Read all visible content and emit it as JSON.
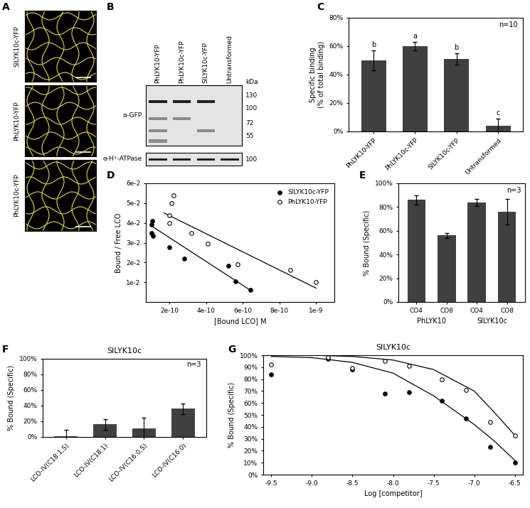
{
  "panel_a": {
    "panel": "A",
    "images": [
      {
        "label": "SlLYK10c-YFP"
      },
      {
        "label": "PhLYK10-YFP"
      },
      {
        "label": "PhLYK10c-YFP"
      }
    ]
  },
  "panel_b": {
    "panel": "B",
    "lanes": [
      "PhLYK10-YFP",
      "PhLYK10c-YFP",
      "SlLYK10c-YFP",
      "Untransformed"
    ],
    "unit": "kDa",
    "blots": [
      {
        "antibody": "α-GFP",
        "markers": [
          130,
          100,
          72,
          55
        ]
      },
      {
        "antibody": "α-H⁺-ATPase",
        "markers": [
          100
        ]
      }
    ]
  },
  "chart_data": [
    {
      "panel": "C",
      "type": "bar",
      "categories": [
        "PhLYK10-YFP",
        "PhLYK10c-YFP",
        "SlLYK10c-YFP",
        "Untransformed"
      ],
      "values": [
        50,
        60,
        51,
        4
      ],
      "errors": [
        7,
        3,
        4,
        5
      ],
      "significance": [
        "b",
        "a",
        "b",
        "c"
      ],
      "annotation": "n=10",
      "y_label": "Specific binding\n(% of total binding)",
      "color": "#404040",
      "ylim": [
        0,
        80
      ],
      "yticks": [
        {
          "value": 0,
          "label": "0%"
        },
        {
          "value": 20,
          "label": "20%"
        },
        {
          "value": 40,
          "label": "40%"
        },
        {
          "value": 60,
          "label": "60%"
        },
        {
          "value": 80,
          "label": "80%"
        }
      ]
    },
    {
      "panel": "D",
      "type": "scatter",
      "x_label": "[Bound LCO] M",
      "y_label": "Bound / Free LCO",
      "xlim": [
        7e-11,
        1.1e-09
      ],
      "xticks": [
        {
          "value": 2e-10,
          "label": "2e-10"
        },
        {
          "value": 4e-10,
          "label": "4e-10"
        },
        {
          "value": 6e-10,
          "label": "6e-10"
        },
        {
          "value": 8e-10,
          "label": "8e-10"
        },
        {
          "value": 1e-09,
          "label": "1e-9"
        }
      ],
      "ylim": [
        0,
        0.06
      ],
      "yticks": [
        {
          "value": 0.01,
          "label": "1e-2"
        },
        {
          "value": 0.02,
          "label": "2e-2"
        },
        {
          "value": 0.03,
          "label": "3e-2"
        },
        {
          "value": 0.04,
          "label": "4e-2"
        },
        {
          "value": 0.05,
          "label": "5e-2"
        },
        {
          "value": 0.06,
          "label": "6e-2"
        }
      ],
      "legend": "upper right",
      "series": [
        {
          "name": "SlLYK10c-YFP",
          "color": "#000000",
          "marker": "filled",
          "x": [
            1e-10,
            1.05e-10,
            1e-10,
            1.1e-10,
            2e-10,
            2.8e-10,
            5.2e-10,
            5.6e-10,
            6.4e-10
          ],
          "values": [
            0.039,
            0.041,
            0.035,
            0.0335,
            0.0275,
            0.022,
            0.0185,
            0.0105,
            0.006
          ]
        },
        {
          "name": "PhLYK10-YFP",
          "color": "#000000",
          "marker": "open",
          "x": [
            2e-10,
            2.2e-10,
            2.1e-10,
            2e-10,
            3.2e-10,
            4.1e-10,
            5.7e-10,
            8.6e-10,
            1e-09
          ],
          "values": [
            0.044,
            0.054,
            0.05,
            0.04,
            0.035,
            0.0295,
            0.019,
            0.016,
            0.01
          ]
        },
        {
          "type": "line",
          "color": "#000000",
          "x": [
            1e-10,
            6.4e-10
          ],
          "values": [
            0.0385,
            0.006
          ]
        },
        {
          "type": "line",
          "color": "#000000",
          "x": [
            1.7e-10,
            1e-09
          ],
          "values": [
            0.045,
            0.007
          ]
        }
      ]
    },
    {
      "panel": "E",
      "type": "bar",
      "categories": [
        "CO4",
        "CO8",
        "CO4",
        "CO8"
      ],
      "groups": [
        "PhLYK10",
        "SlLYK10c"
      ],
      "values": [
        86,
        56,
        84,
        76
      ],
      "errors": [
        4,
        2,
        3,
        11
      ],
      "annotation": "n=3",
      "y_label": "% Bound (Specific)",
      "color": "#404040",
      "ylim": [
        0,
        100
      ],
      "yticks": [
        {
          "value": 0,
          "label": "0%"
        },
        {
          "value": 20,
          "label": "20%"
        },
        {
          "value": 40,
          "label": "40%"
        },
        {
          "value": 60,
          "label": "60%"
        },
        {
          "value": 80,
          "label": "80%"
        },
        {
          "value": 100,
          "label": "100%"
        }
      ]
    },
    {
      "panel": "F",
      "type": "bar",
      "title": "SlLYK10c",
      "categories": [
        "LCO-IV(C18:1,S)",
        "LCO-IV(C18:1)",
        "LCO-IV(C16:0,S)",
        "LCO-IV(C16:0)"
      ],
      "values": [
        0.5,
        16,
        11,
        36
      ],
      "errors": [
        9,
        7,
        14,
        7
      ],
      "annotation": "n=3",
      "y_label": "% Bound (Specific)",
      "color": "#404040",
      "ylim": [
        0,
        100
      ],
      "yticks": [
        {
          "value": 0,
          "label": "0%"
        },
        {
          "value": 20,
          "label": "20%"
        },
        {
          "value": 40,
          "label": "40%"
        },
        {
          "value": 60,
          "label": "60%"
        },
        {
          "value": 80,
          "label": "80%"
        },
        {
          "value": 100,
          "label": "100%"
        }
      ]
    },
    {
      "panel": "G",
      "type": "scatter",
      "title": "SlLYK10c",
      "x_label": "Log [competitor]",
      "y_label": "% Bound (Specific)",
      "xlim": [
        -9.6,
        -6.4
      ],
      "xticks": [
        {
          "value": -9.5,
          "label": "-9.5"
        },
        {
          "value": -9,
          "label": "-9.0"
        },
        {
          "value": -8.5,
          "label": "-8.5"
        },
        {
          "value": -8,
          "label": "-8.0"
        },
        {
          "value": -7.5,
          "label": "-7.5"
        },
        {
          "value": -7,
          "label": "-7.0"
        },
        {
          "value": -6.5,
          "label": "-6.5"
        }
      ],
      "ylim": [
        0,
        100
      ],
      "yticks": [
        {
          "value": 0,
          "label": "0%"
        },
        {
          "value": 10,
          "label": "10%"
        },
        {
          "value": 20,
          "label": "20%"
        },
        {
          "value": 30,
          "label": "30%"
        },
        {
          "value": 40,
          "label": "40%"
        },
        {
          "value": 50,
          "label": "50%"
        },
        {
          "value": 60,
          "label": "60%"
        },
        {
          "value": 70,
          "label": "70%"
        },
        {
          "value": 80,
          "label": "80%"
        },
        {
          "value": 90,
          "label": "90%"
        },
        {
          "value": 100,
          "label": "100%"
        }
      ],
      "series": [
        {
          "color": "#000000",
          "marker": "filled",
          "x": [
            -9.5,
            -8.8,
            -8.5,
            -8.1,
            -7.8,
            -7.4,
            -7.1,
            -6.8,
            -6.5
          ],
          "values": [
            84,
            97,
            88,
            68,
            69,
            62,
            47,
            23,
            10
          ]
        },
        {
          "color": "#000000",
          "marker": "open",
          "x": [
            -9.5,
            -8.8,
            -8.5,
            -8.1,
            -7.8,
            -7.4,
            -7.1,
            -6.8,
            -6.5
          ],
          "values": [
            92,
            98,
            89,
            95,
            91,
            80,
            71,
            44,
            33
          ]
        },
        {
          "type": "line",
          "color": "#000000",
          "x": [
            -9.5,
            -9.0,
            -8.5,
            -8.0,
            -7.5,
            -7.0,
            -6.75,
            -6.5
          ],
          "values": [
            99,
            98,
            94,
            85,
            66,
            42,
            28,
            12
          ]
        },
        {
          "type": "line",
          "color": "#000000",
          "x": [
            -9.5,
            -9.0,
            -8.5,
            -8.0,
            -7.5,
            -7.0,
            -6.75,
            -6.5
          ],
          "values": [
            100,
            100,
            99,
            96,
            88,
            70,
            52,
            33
          ]
        }
      ]
    }
  ]
}
